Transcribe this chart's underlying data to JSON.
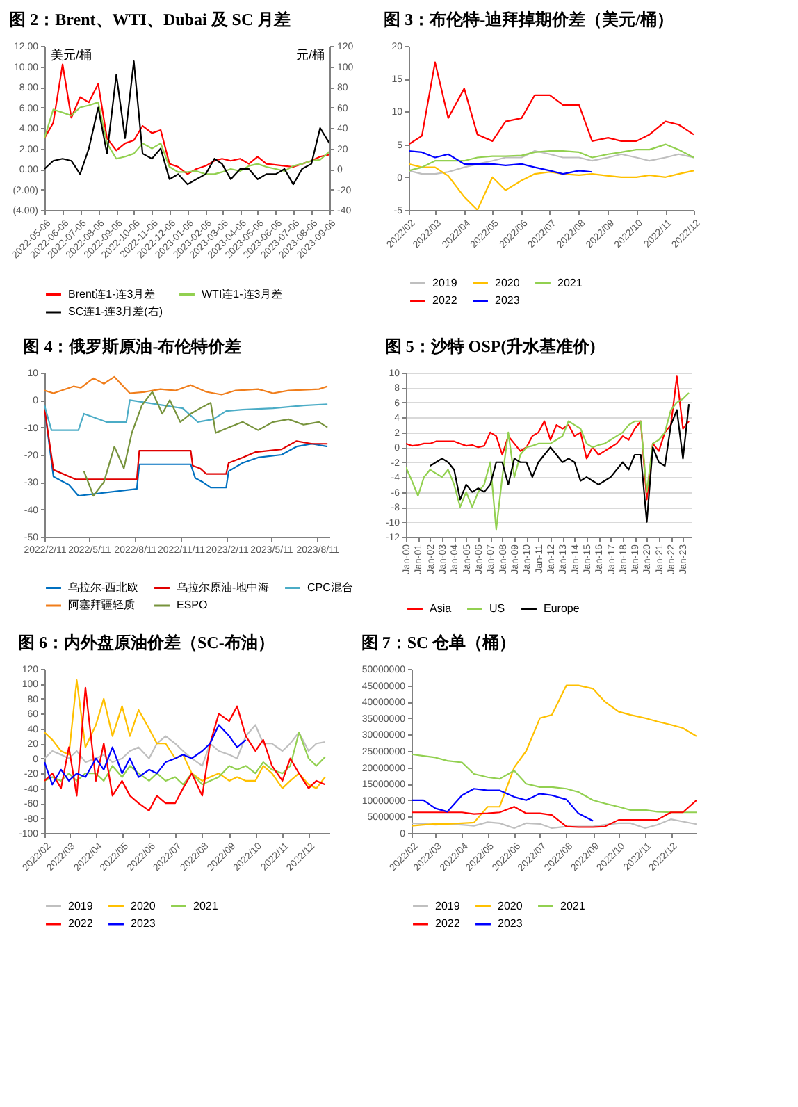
{
  "chart_data": [
    {
      "type": "line",
      "title": "图 2：Brent、WTI、Dubai 及 SC 月差",
      "ylabel": "美元/桶",
      "y2label": "元/桶",
      "legend": "bottom",
      "x": [
        "2022-05-06",
        "2022-05-21",
        "2022-06-06",
        "2022-06-21",
        "2022-07-06",
        "2022-07-21",
        "2022-08-06",
        "2022-08-21",
        "2022-09-06",
        "2022-09-21",
        "2022-10-06",
        "2022-10-21",
        "2022-11-06",
        "2022-11-21",
        "2022-12-06",
        "2022-12-21",
        "2023-01-06",
        "2023-01-21",
        "2023-02-06",
        "2023-02-21",
        "2023-03-06",
        "2023-03-21",
        "2023-04-06",
        "2023-04-21",
        "2023-05-06",
        "2023-05-21",
        "2023-06-06",
        "2023-06-21",
        "2023-07-06",
        "2023-07-21",
        "2023-08-06",
        "2023-08-21",
        "2023-09-06"
      ],
      "xlim": [
        "2022-05-06",
        "2023-09-06"
      ],
      "xticks": [
        {
          "value": "2022-05-06",
          "label": "2022-05-06"
        },
        {
          "value": "2022-06-06",
          "label": "2022-06-06"
        },
        {
          "value": "2022-07-06",
          "label": "2022-07-06"
        },
        {
          "value": "2022-08-06",
          "label": "2022-08-06"
        },
        {
          "value": "2022-09-06",
          "label": "2022-09-06"
        },
        {
          "value": "2022-10-06",
          "label": "2022-10-06"
        },
        {
          "value": "2022-11-06",
          "label": "2022-11-06"
        },
        {
          "value": "2022-12-06",
          "label": "2022-12-06"
        },
        {
          "value": "2023-01-06",
          "label": "2023-01-06"
        },
        {
          "value": "2023-02-06",
          "label": "2023-02-06"
        },
        {
          "value": "2023-03-06",
          "label": "2023-03-06"
        },
        {
          "value": "2023-04-06",
          "label": "2023-04-06"
        },
        {
          "value": "2023-05-06",
          "label": "2023-05-06"
        },
        {
          "value": "2023-06-06",
          "label": "2023-06-06"
        },
        {
          "value": "2023-07-06",
          "label": "2023-07-06"
        },
        {
          "value": "2023-08-06",
          "label": "2023-08-06"
        },
        {
          "value": "2023-09-06",
          "label": "2023-09-06"
        }
      ],
      "ylim": [
        -4,
        12
      ],
      "yticks": [
        {
          "value": -4,
          "label": "(4.00)"
        },
        {
          "value": -2,
          "label": "(2.00)"
        },
        {
          "value": 0,
          "label": "0.00"
        },
        {
          "value": 2,
          "label": "2.00"
        },
        {
          "value": 4,
          "label": "4.00"
        },
        {
          "value": 6,
          "label": "6.00"
        },
        {
          "value": 8,
          "label": "8.00"
        },
        {
          "value": 10,
          "label": "10.00"
        },
        {
          "value": 12,
          "label": "12.00"
        }
      ],
      "y2lim": [
        -40,
        120
      ],
      "y2ticks": [
        -40,
        -20,
        0,
        20,
        40,
        60,
        80,
        100,
        120
      ],
      "series": [
        {
          "name": "Brent连1-连3月差",
          "color": "#ff0000",
          "values": [
            3.0,
            4.5,
            10.2,
            5.0,
            7.0,
            6.5,
            8.3,
            3.0,
            1.8,
            2.5,
            2.8,
            4.2,
            3.5,
            3.8,
            0.5,
            0.2,
            -0.5,
            0.0,
            0.3,
            0.8,
            1.0,
            0.8,
            1.0,
            0.5,
            1.2,
            0.5,
            0.4,
            0.3,
            0.2,
            0.5,
            0.8,
            1.2,
            1.4
          ]
        },
        {
          "name": "WTI连1-连3月差",
          "color": "#92d050",
          "values": [
            3.0,
            5.8,
            5.5,
            5.2,
            6.0,
            6.2,
            6.5,
            2.5,
            1.0,
            1.2,
            1.5,
            2.5,
            2.0,
            2.5,
            0.2,
            -0.3,
            -0.3,
            -0.2,
            -0.5,
            -0.5,
            -0.3,
            0.0,
            -0.2,
            0.3,
            0.5,
            0.2,
            0.0,
            -0.2,
            0.3,
            0.5,
            0.8,
            0.9,
            1.7
          ]
        },
        {
          "name": "SC连1-连3月差(右)",
          "color": "#000000",
          "axis": "y2",
          "values": [
            0,
            8,
            10,
            8,
            -5,
            20,
            60,
            15,
            92,
            30,
            105,
            15,
            10,
            20,
            -10,
            -5,
            -15,
            -10,
            -5,
            10,
            5,
            -10,
            0,
            0,
            -10,
            -5,
            -5,
            0,
            -15,
            0,
            5,
            40,
            25
          ]
        }
      ]
    },
    {
      "type": "line",
      "title": "图 3：布伦特-迪拜掉期价差（美元/桶）",
      "legend": "bottom",
      "x": [
        "2022-02-01",
        "2022-02-15",
        "2022-03-01",
        "2022-03-15",
        "2022-04-01",
        "2022-04-15",
        "2022-05-01",
        "2022-05-15",
        "2022-06-01",
        "2022-06-15",
        "2022-07-01",
        "2022-07-15",
        "2022-08-01",
        "2022-08-15",
        "2022-09-01",
        "2022-09-15",
        "2022-10-01",
        "2022-10-15",
        "2022-11-01",
        "2022-11-15",
        "2022-12-01"
      ],
      "xlim": [
        "2022-02-01",
        "2022-12-01"
      ],
      "xticks": [
        {
          "value": "2022-02-01",
          "label": "2022/02"
        },
        {
          "value": "2022-03-01",
          "label": "2022/03"
        },
        {
          "value": "2022-04-01",
          "label": "2022/04"
        },
        {
          "value": "2022-05-01",
          "label": "2022/05"
        },
        {
          "value": "2022-06-01",
          "label": "2022/06"
        },
        {
          "value": "2022-07-01",
          "label": "2022/07"
        },
        {
          "value": "2022-08-01",
          "label": "2022/08"
        },
        {
          "value": "2022-09-01",
          "label": "2022/09"
        },
        {
          "value": "2022-10-01",
          "label": "2022/10"
        },
        {
          "value": "2022-11-01",
          "label": "2022/11"
        },
        {
          "value": "2022-12-01",
          "label": "2022/12"
        }
      ],
      "ylim": [
        -5,
        20
      ],
      "yticks": [
        -5,
        0,
        5,
        10,
        15,
        20
      ],
      "series": [
        {
          "name": "2019",
          "color": "#bfbfbf",
          "values": [
            1,
            0.5,
            0.5,
            0.8,
            1.5,
            2,
            2.5,
            3,
            3,
            4,
            3.5,
            3,
            3,
            2.5,
            3,
            3.5,
            3,
            2.5,
            3,
            3.5,
            3
          ]
        },
        {
          "name": "2020",
          "color": "#ffc000",
          "values": [
            2,
            1.5,
            1.5,
            0.2,
            -3,
            -5,
            0,
            -2,
            -0.5,
            0.5,
            0.8,
            0.5,
            0.3,
            0.5,
            0.2,
            0,
            0,
            0.3,
            0,
            0.5,
            1
          ]
        },
        {
          "name": "2021",
          "color": "#92d050",
          "values": [
            1,
            1.5,
            2.5,
            2.5,
            2.5,
            3,
            3.2,
            3.2,
            3.3,
            3.8,
            4,
            4,
            3.8,
            3,
            3.5,
            3.8,
            4.2,
            4.2,
            5,
            4.2,
            3
          ]
        },
        {
          "name": "2022",
          "color": "#ff0000",
          "values": [
            5,
            6.3,
            17.5,
            9,
            13.5,
            6.5,
            5.5,
            8.5,
            9,
            12.5,
            12.5,
            11,
            11,
            5.5,
            6,
            5.5,
            5.5,
            6.5,
            8.5,
            8,
            6.5
          ]
        },
        {
          "name": "2023",
          "color": "#0000ff",
          "values": [
            4,
            3.8,
            3,
            3.5,
            2,
            2,
            2,
            1.8,
            2,
            1.5,
            1,
            0.5,
            1,
            0.8,
            null,
            null,
            null,
            null,
            null,
            null,
            null
          ]
        }
      ]
    },
    {
      "type": "line",
      "title": "图 4：俄罗斯原油-布伦特价差",
      "legend": "bottom",
      "xlim": [
        "2022-02-11",
        "2023-09-05"
      ],
      "xticks": [
        {
          "value": "2022-02-11",
          "label": "2022/2/11"
        },
        {
          "value": "2022-05-11",
          "label": "2022/5/11"
        },
        {
          "value": "2022-08-11",
          "label": "2022/8/11"
        },
        {
          "value": "2022-11-11",
          "label": "2022/11/11"
        },
        {
          "value": "2023-02-11",
          "label": "2023/2/11"
        },
        {
          "value": "2023-05-11",
          "label": "2023/5/11"
        },
        {
          "value": "2023-08-11",
          "label": "2023/8/11"
        }
      ],
      "ylim": [
        -50,
        10
      ],
      "yticks": [
        -50,
        -40,
        -30,
        -20,
        -10,
        0,
        10
      ],
      "series": [
        {
          "name": "乌拉尔-西北欧",
          "color": "#0070c0",
          "x": [
            "2022-02-11",
            "2022-03-01",
            "2022-04-01",
            "2022-04-20",
            "2022-08-15",
            "2022-08-20",
            "2022-12-01",
            "2022-12-10",
            "2022-12-25",
            "2023-01-10",
            "2023-02-10",
            "2023-02-15",
            "2023-03-15",
            "2023-04-15",
            "2023-06-01",
            "2023-07-01",
            "2023-08-01",
            "2023-09-01"
          ],
          "values": [
            -3,
            -28,
            -31,
            -35,
            -32.5,
            -23.5,
            -23.5,
            -28.5,
            -30,
            -32,
            -32,
            -26,
            -23,
            -21,
            -20,
            -17,
            -16,
            -17
          ]
        },
        {
          "name": "乌拉尔原油-地中海",
          "color": "#e00000",
          "x": [
            "2022-02-11",
            "2022-03-01",
            "2022-04-15",
            "2022-08-15",
            "2022-08-20",
            "2022-12-01",
            "2022-12-05",
            "2022-12-20",
            "2023-01-01",
            "2023-02-10",
            "2023-02-15",
            "2023-03-15",
            "2023-04-10",
            "2023-06-01",
            "2023-07-01",
            "2023-08-01",
            "2023-09-01"
          ],
          "values": [
            -3,
            -25.5,
            -29,
            -29,
            -18.5,
            -18.5,
            -24,
            -25,
            -27,
            -27,
            -23,
            -21,
            -19,
            -18,
            -15,
            -16,
            -16
          ]
        },
        {
          "name": "CPC混合",
          "color": "#4bacc6",
          "x": [
            "2022-02-11",
            "2022-02-25",
            "2022-04-20",
            "2022-05-01",
            "2022-06-15",
            "2022-07-25",
            "2022-08-01",
            "2022-11-15",
            "2022-12-15",
            "2023-01-15",
            "2023-02-10",
            "2023-03-15",
            "2023-05-15",
            "2023-07-15",
            "2023-09-01"
          ],
          "values": [
            -2,
            -11,
            -11,
            -5,
            -8,
            -8,
            0,
            -3,
            -8,
            -7,
            -4,
            -3.5,
            -3,
            -2,
            -1.5
          ]
        },
        {
          "name": "阿塞拜疆轻质",
          "color": "#f07d1a",
          "x": [
            "2022-02-11",
            "2022-03-01",
            "2022-04-10",
            "2022-04-25",
            "2022-05-20",
            "2022-06-10",
            "2022-07-01",
            "2022-08-01",
            "2022-09-01",
            "2022-10-01",
            "2022-11-01",
            "2022-12-01",
            "2023-01-01",
            "2023-02-01",
            "2023-03-01",
            "2023-04-15",
            "2023-05-15",
            "2023-06-15",
            "2023-08-15",
            "2023-09-01"
          ],
          "values": [
            3.5,
            2.5,
            5,
            4.5,
            8,
            6,
            8.5,
            2.5,
            3,
            4,
            3.5,
            5.5,
            3,
            2,
            3.5,
            4,
            2.5,
            3.5,
            4,
            5
          ]
        },
        {
          "name": "ESPO",
          "color": "#77933c",
          "x": [
            "2022-05-01",
            "2022-05-20",
            "2022-06-10",
            "2022-07-01",
            "2022-07-20",
            "2022-08-05",
            "2022-08-25",
            "2022-09-15",
            "2022-10-05",
            "2022-10-20",
            "2022-11-10",
            "2022-12-01",
            "2022-12-20",
            "2023-01-10",
            "2023-01-20",
            "2023-02-15",
            "2023-03-15",
            "2023-04-15",
            "2023-05-15",
            "2023-06-15",
            "2023-07-15",
            "2023-08-15",
            "2023-09-01"
          ],
          "values": [
            -26,
            -35,
            -30,
            -17,
            -25,
            -12,
            -2,
            3,
            -5,
            0,
            -8,
            -5,
            -3,
            -1,
            -12,
            -10,
            -8,
            -11,
            -8,
            -7,
            -9,
            -8,
            -10
          ]
        }
      ]
    },
    {
      "type": "line",
      "title": "图 5：沙特 OSP(升水基准价)",
      "legend": "bottom",
      "grid": "y",
      "x": [
        "2000-01",
        "2000-07",
        "2001-01",
        "2001-07",
        "2002-01",
        "2002-07",
        "2003-01",
        "2003-07",
        "2004-01",
        "2004-07",
        "2005-01",
        "2005-07",
        "2006-01",
        "2006-07",
        "2007-01",
        "2007-07",
        "2008-01",
        "2008-07",
        "2009-01",
        "2009-07",
        "2010-01",
        "2010-07",
        "2011-01",
        "2011-07",
        "2012-01",
        "2012-07",
        "2013-01",
        "2013-07",
        "2014-01",
        "2014-07",
        "2015-01",
        "2015-07",
        "2016-01",
        "2016-07",
        "2017-01",
        "2017-07",
        "2018-01",
        "2018-07",
        "2019-01",
        "2019-07",
        "2020-01",
        "2020-07",
        "2021-01",
        "2021-07",
        "2022-01",
        "2022-07",
        "2023-01",
        "2023-07"
      ],
      "xlim": [
        "2000-01",
        "2023-09"
      ],
      "xticks": [
        {
          "value": "2000-01",
          "label": "Jan-00"
        },
        {
          "value": "2001-01",
          "label": "Jan-01"
        },
        {
          "value": "2002-01",
          "label": "Jan-02"
        },
        {
          "value": "2003-01",
          "label": "Jan-03"
        },
        {
          "value": "2004-01",
          "label": "Jan-04"
        },
        {
          "value": "2005-01",
          "label": "Jan-05"
        },
        {
          "value": "2006-01",
          "label": "Jan-06"
        },
        {
          "value": "2007-01",
          "label": "Jan-07"
        },
        {
          "value": "2008-01",
          "label": "Jan-08"
        },
        {
          "value": "2009-01",
          "label": "Jan-09"
        },
        {
          "value": "2010-01",
          "label": "Jan-10"
        },
        {
          "value": "2011-01",
          "label": "Jan-11"
        },
        {
          "value": "2012-01",
          "label": "Jan-12"
        },
        {
          "value": "2013-01",
          "label": "Jan-13"
        },
        {
          "value": "2014-01",
          "label": "Jan-14"
        },
        {
          "value": "2015-01",
          "label": "Jan-15"
        },
        {
          "value": "2016-01",
          "label": "Jan-16"
        },
        {
          "value": "2017-01",
          "label": "Jan-17"
        },
        {
          "value": "2018-01",
          "label": "Jan-18"
        },
        {
          "value": "2019-01",
          "label": "Jan-19"
        },
        {
          "value": "2020-01",
          "label": "Jan-20"
        },
        {
          "value": "2021-01",
          "label": "Jan-21"
        },
        {
          "value": "2022-01",
          "label": "Jan-22"
        },
        {
          "value": "2023-01",
          "label": "Jan-23"
        }
      ],
      "ylim": [
        -12,
        10
      ],
      "yticks": [
        -12,
        -10,
        -8,
        -6,
        -4,
        -2,
        0,
        2,
        4,
        6,
        8,
        10
      ],
      "series": [
        {
          "name": "Asia",
          "color": "#ff0000",
          "values": [
            0.5,
            0.2,
            0.3,
            0.5,
            0.5,
            0.8,
            0.8,
            0.8,
            0.8,
            0.5,
            0.2,
            0.3,
            0.0,
            0.2,
            2.0,
            1.5,
            -1.0,
            1.5,
            0.5,
            -0.5,
            0.0,
            1.5,
            2.0,
            3.5,
            1.0,
            3.0,
            2.5,
            3.0,
            1.5,
            2.0,
            -1.5,
            0.0,
            -1.0,
            -0.5,
            0.0,
            0.5,
            1.5,
            1.0,
            2.5,
            3.5,
            -7.0,
            0.5,
            -0.5,
            2.0,
            3.0,
            9.5,
            2.5,
            3.5
          ]
        },
        {
          "name": "US",
          "color": "#92d050",
          "values": [
            -2.7,
            -4.5,
            -6.5,
            -4,
            -3,
            -3.5,
            -4,
            -3,
            -5,
            -8,
            -6,
            -8,
            -6,
            -5,
            -2,
            -11,
            -4,
            2,
            -4,
            -1,
            0,
            0.2,
            0.5,
            0.5,
            0.5,
            1,
            1.5,
            3.5,
            3,
            2.5,
            0.5,
            0,
            0.3,
            0.5,
            1,
            1.5,
            2,
            3,
            3.5,
            3.5,
            -6,
            0.5,
            1,
            2,
            5,
            6,
            6.5,
            7.3
          ]
        },
        {
          "name": "Europe",
          "color": "#000000",
          "values": [
            null,
            null,
            null,
            null,
            -2.5,
            -2,
            -1.5,
            -2,
            -3,
            -7,
            -5,
            -6,
            -5.5,
            -6,
            -5,
            -2,
            -2,
            -5,
            -1.5,
            -2,
            -2,
            -4,
            -2,
            -1,
            0,
            -1,
            -2,
            -1.5,
            -2,
            -4.5,
            -4,
            -4.5,
            -5,
            -4.5,
            -4,
            -3,
            -2,
            -3,
            -1,
            -1,
            -10,
            0,
            -2,
            -2.5,
            3,
            5,
            -1.5,
            5.8
          ]
        }
      ]
    },
    {
      "type": "line",
      "title": "图 6：内外盘原油价差（SC-布油）",
      "legend": "bottom",
      "x": [
        "2022-02-01",
        "2022-02-10",
        "2022-02-20",
        "2022-03-01",
        "2022-03-10",
        "2022-03-20",
        "2022-04-01",
        "2022-04-10",
        "2022-04-20",
        "2022-05-01",
        "2022-05-10",
        "2022-05-20",
        "2022-06-01",
        "2022-06-10",
        "2022-06-20",
        "2022-07-01",
        "2022-07-10",
        "2022-07-20",
        "2022-08-01",
        "2022-08-10",
        "2022-08-20",
        "2022-09-01",
        "2022-09-10",
        "2022-09-20",
        "2022-10-01",
        "2022-10-10",
        "2022-10-20",
        "2022-11-01",
        "2022-11-10",
        "2022-11-20",
        "2022-12-01",
        "2022-12-10",
        "2022-12-20"
      ],
      "xlim": [
        "2022-02-01",
        "2022-12-25"
      ],
      "xticks": [
        {
          "value": "2022-02-01",
          "label": "2022/02"
        },
        {
          "value": "2022-03-01",
          "label": "2022/03"
        },
        {
          "value": "2022-04-01",
          "label": "2022/04"
        },
        {
          "value": "2022-05-01",
          "label": "2022/05"
        },
        {
          "value": "2022-06-01",
          "label": "2022/06"
        },
        {
          "value": "2022-07-01",
          "label": "2022/07"
        },
        {
          "value": "2022-08-01",
          "label": "2022/08"
        },
        {
          "value": "2022-09-01",
          "label": "2022/09"
        },
        {
          "value": "2022-10-01",
          "label": "2022/10"
        },
        {
          "value": "2022-11-01",
          "label": "2022/11"
        },
        {
          "value": "2022-12-01",
          "label": "2022/12"
        }
      ],
      "ylim": [
        -100,
        120
      ],
      "yticks": [
        -100,
        -80,
        -60,
        -40,
        -20,
        0,
        20,
        40,
        60,
        80,
        100,
        120
      ],
      "series": [
        {
          "name": "2019",
          "color": "#bfbfbf",
          "values": [
            0,
            10,
            5,
            0,
            10,
            -5,
            0,
            5,
            -5,
            0,
            10,
            15,
            0,
            20,
            30,
            20,
            10,
            0,
            -10,
            20,
            10,
            5,
            0,
            30,
            45,
            20,
            20,
            10,
            20,
            35,
            10,
            20,
            22
          ]
        },
        {
          "name": "2020",
          "color": "#ffc000",
          "values": [
            35,
            25,
            10,
            5,
            105,
            15,
            45,
            80,
            30,
            70,
            30,
            65,
            40,
            20,
            20,
            0,
            5,
            -20,
            -30,
            -25,
            -20,
            -30,
            -25,
            -30,
            -30,
            -10,
            -20,
            -40,
            -30,
            -20,
            -35,
            -40,
            -25
          ]
        },
        {
          "name": "2021",
          "color": "#92d050",
          "values": [
            -30,
            -25,
            -30,
            -20,
            -30,
            -20,
            -20,
            -30,
            -10,
            -25,
            -10,
            -20,
            -30,
            -20,
            -30,
            -25,
            -35,
            -20,
            -35,
            -30,
            -25,
            -10,
            -15,
            -10,
            -20,
            -5,
            -15,
            -20,
            -10,
            35,
            0,
            -10,
            2
          ]
        },
        {
          "name": "2022",
          "color": "#ff0000",
          "values": [
            -30,
            -20,
            -40,
            15,
            -50,
            95,
            -30,
            20,
            -50,
            -30,
            -50,
            -60,
            -70,
            -50,
            -60,
            -60,
            -40,
            -20,
            -50,
            20,
            60,
            50,
            70,
            30,
            10,
            25,
            -10,
            -30,
            0,
            -20,
            -40,
            -30,
            -35
          ]
        },
        {
          "name": "2023",
          "color": "#0000ff",
          "values": [
            -5,
            -35,
            -15,
            -30,
            -20,
            -25,
            0,
            -15,
            15,
            -20,
            0,
            -25,
            -15,
            -20,
            -5,
            0,
            5,
            0,
            10,
            20,
            45,
            30,
            15,
            25,
            null,
            null,
            null,
            null,
            null,
            null,
            null,
            null,
            null
          ]
        }
      ]
    },
    {
      "type": "line",
      "title": "图 7：SC 仓单（桶）",
      "legend": "bottom",
      "x": [
        "2022-02-01",
        "2022-02-15",
        "2022-03-01",
        "2022-03-15",
        "2022-04-01",
        "2022-04-15",
        "2022-05-01",
        "2022-05-15",
        "2022-06-01",
        "2022-06-15",
        "2022-07-01",
        "2022-07-15",
        "2022-08-01",
        "2022-08-15",
        "2022-09-01",
        "2022-09-15",
        "2022-10-01",
        "2022-10-15",
        "2022-11-01",
        "2022-11-15",
        "2022-12-01",
        "2022-12-15",
        "2022-12-31"
      ],
      "xlim": [
        "2022-02-01",
        "2022-12-31"
      ],
      "xticks": [
        {
          "value": "2022-02-01",
          "label": "2022/02"
        },
        {
          "value": "2022-03-01",
          "label": "2022/03"
        },
        {
          "value": "2022-04-01",
          "label": "2022/04"
        },
        {
          "value": "2022-05-01",
          "label": "2022/05"
        },
        {
          "value": "2022-06-01",
          "label": "2022/06"
        },
        {
          "value": "2022-07-01",
          "label": "2022/07"
        },
        {
          "value": "2022-08-01",
          "label": "2022/08"
        },
        {
          "value": "2022-09-01",
          "label": "2022/09"
        },
        {
          "value": "2022-10-01",
          "label": "2022/10"
        },
        {
          "value": "2022-11-01",
          "label": "2022/11"
        },
        {
          "value": "2022-12-01",
          "label": "2022/12"
        }
      ],
      "ylim": [
        0,
        50000000
      ],
      "yticks": [
        0,
        5000000,
        10000000,
        15000000,
        20000000,
        25000000,
        30000000,
        35000000,
        40000000,
        45000000,
        50000000
      ],
      "series": [
        {
          "name": "2019",
          "color": "#bfbfbf",
          "values": [
            3000000,
            2800000,
            2500000,
            2700000,
            2500000,
            2200000,
            3300000,
            3000000,
            1500000,
            3000000,
            2800000,
            1500000,
            2000000,
            2000000,
            2000000,
            2500000,
            3000000,
            3000000,
            1500000,
            2500000,
            4200000,
            3500000,
            2700000
          ]
        },
        {
          "name": "2020",
          "color": "#ffc000",
          "values": [
            2200000,
            2500000,
            2800000,
            2800000,
            3000000,
            3200000,
            8000000,
            8000000,
            20000000,
            25000000,
            35000000,
            36000000,
            45000000,
            45000000,
            44000000,
            40000000,
            37000000,
            36000000,
            35000000,
            34000000,
            33000000,
            32000000,
            29500000
          ]
        },
        {
          "name": "2021",
          "color": "#92d050",
          "values": [
            24000000,
            23500000,
            23000000,
            22000000,
            21500000,
            18000000,
            17000000,
            16500000,
            19000000,
            15000000,
            14000000,
            14000000,
            13500000,
            12500000,
            10000000,
            9000000,
            8000000,
            7000000,
            7000000,
            6500000,
            6300000,
            6300000,
            6300000
          ]
        },
        {
          "name": "2022",
          "color": "#ff0000",
          "values": [
            6300000,
            6300000,
            6300000,
            6300000,
            6300000,
            5800000,
            6000000,
            6300000,
            8000000,
            6000000,
            6000000,
            5500000,
            2000000,
            1800000,
            1800000,
            2000000,
            4000000,
            4000000,
            4000000,
            4000000,
            6300000,
            6300000,
            10000000
          ]
        },
        {
          "name": "2023",
          "color": "#0000ff",
          "values": [
            10000000,
            10000000,
            7500000,
            6500000,
            11500000,
            13500000,
            13000000,
            13000000,
            11000000,
            10000000,
            12000000,
            11500000,
            10200000,
            6000000,
            3700000,
            null,
            null,
            null,
            null,
            null,
            null,
            null,
            null
          ]
        }
      ]
    }
  ]
}
